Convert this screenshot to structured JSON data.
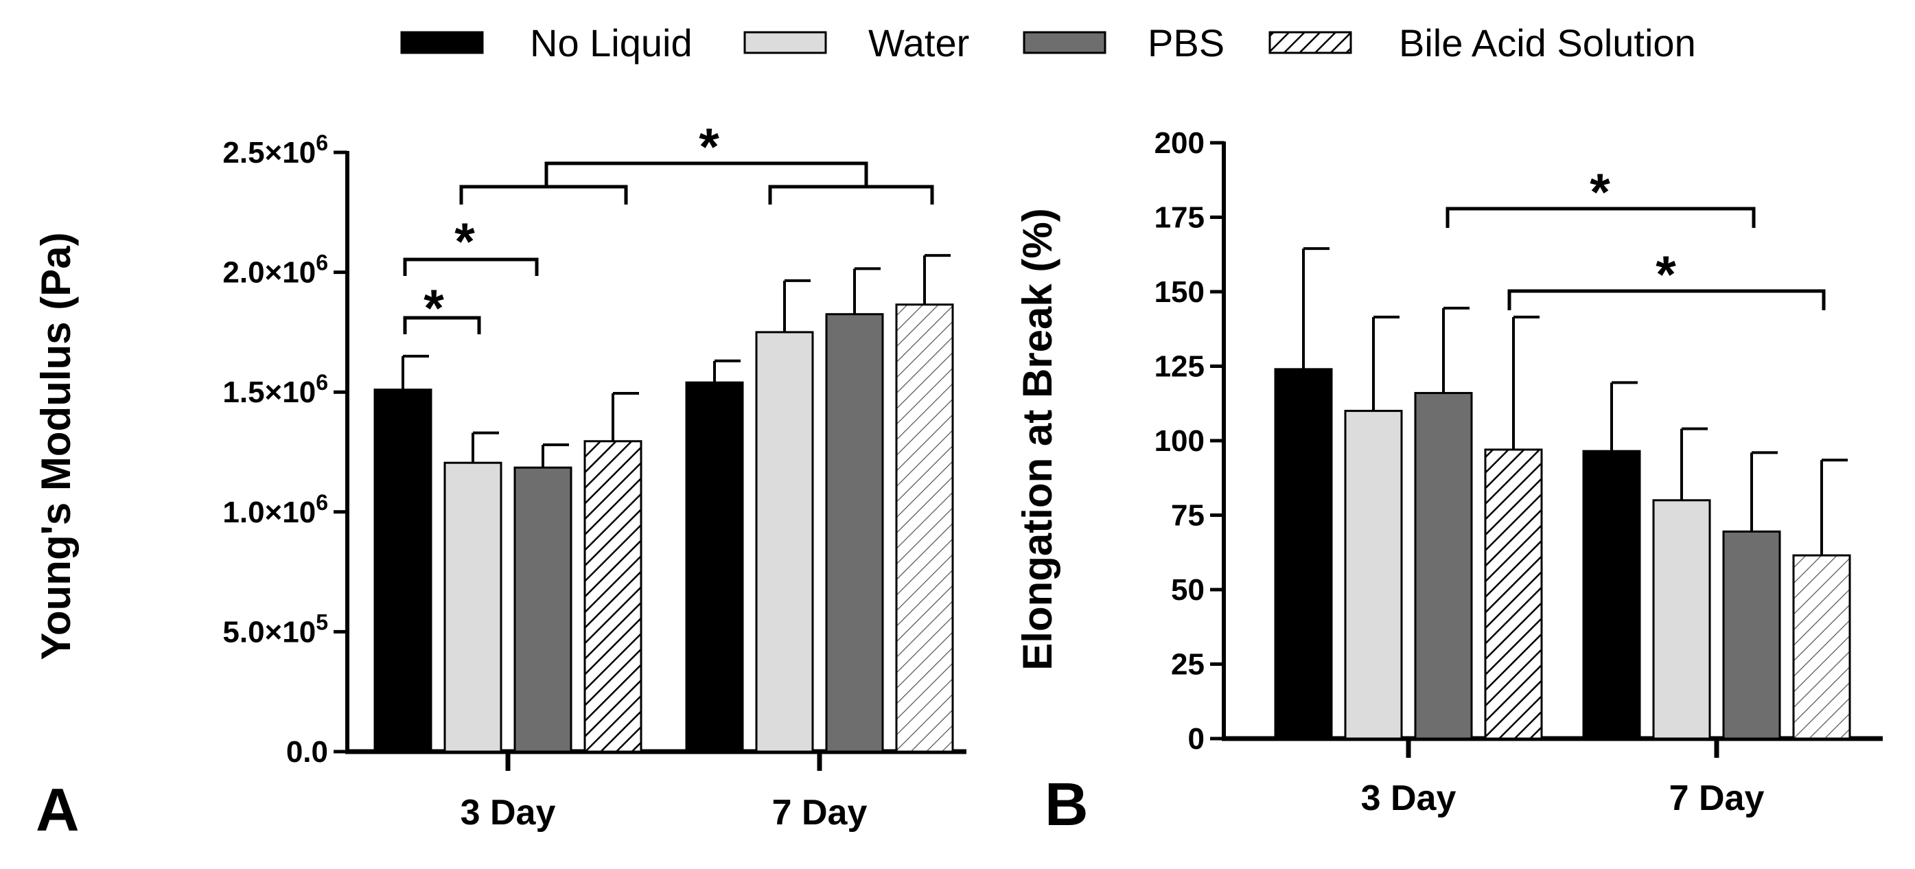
{
  "legend": [
    {
      "name": "No Liquid",
      "fill": "#000000",
      "hatch": false
    },
    {
      "name": "Water",
      "fill": "#dcdcdc",
      "hatch": false
    },
    {
      "name": "PBS",
      "fill": "#6e6e6e",
      "hatch": false
    },
    {
      "name": "Bile Acid Solution",
      "fill": "#ffffff",
      "hatch": true
    }
  ],
  "significance_marker": "*",
  "chart_data": [
    {
      "type": "bar",
      "panel_label": "A",
      "ylabel": "Young's Modulus (Pa)",
      "categories": [
        "3 Day",
        "7 Day"
      ],
      "ylim": [
        0,
        2500000
      ],
      "yticks": [
        {
          "value": 0,
          "base": "0.0",
          "exp": ""
        },
        {
          "value": 500000,
          "base": "5.0×10",
          "exp": "5"
        },
        {
          "value": 1000000,
          "base": "1.0×10",
          "exp": "6"
        },
        {
          "value": 1500000,
          "base": "1.5×10",
          "exp": "6"
        },
        {
          "value": 2000000,
          "base": "2.0×10",
          "exp": "6"
        },
        {
          "value": 2500000,
          "base": "2.5×10",
          "exp": "6"
        }
      ],
      "series": [
        {
          "name": "No Liquid",
          "values": [
            1510000,
            1540000
          ],
          "errors": [
            140000,
            90000
          ]
        },
        {
          "name": "Water",
          "values": [
            1205000,
            1750000
          ],
          "errors": [
            125000,
            215000
          ]
        },
        {
          "name": "PBS",
          "values": [
            1185000,
            1825000
          ],
          "errors": [
            95000,
            190000
          ]
        },
        {
          "name": "Bile Acid Solution",
          "values": [
            1295000,
            1865000
          ],
          "errors": [
            200000,
            205000
          ]
        }
      ]
    },
    {
      "type": "bar",
      "panel_label": "B",
      "ylabel": "Elongation at Break (%)",
      "categories": [
        "3 Day",
        "7 Day"
      ],
      "ylim": [
        0,
        200
      ],
      "yticks": [
        {
          "value": 0,
          "base": "0",
          "exp": ""
        },
        {
          "value": 25,
          "base": "25",
          "exp": ""
        },
        {
          "value": 50,
          "base": "50",
          "exp": ""
        },
        {
          "value": 75,
          "base": "75",
          "exp": ""
        },
        {
          "value": 100,
          "base": "100",
          "exp": ""
        },
        {
          "value": 125,
          "base": "125",
          "exp": ""
        },
        {
          "value": 150,
          "base": "150",
          "exp": ""
        },
        {
          "value": 175,
          "base": "175",
          "exp": ""
        },
        {
          "value": 200,
          "base": "200",
          "exp": ""
        }
      ],
      "series": [
        {
          "name": "No Liquid",
          "values": [
            124,
            96.5
          ],
          "errors": [
            40.5,
            23
          ]
        },
        {
          "name": "Water",
          "values": [
            110,
            80
          ],
          "errors": [
            31.5,
            24
          ]
        },
        {
          "name": "PBS",
          "values": [
            116,
            69.5
          ],
          "errors": [
            28.5,
            26.5
          ]
        },
        {
          "name": "Bile Acid Solution",
          "values": [
            97,
            61.5
          ],
          "errors": [
            44.5,
            32
          ]
        }
      ]
    }
  ]
}
